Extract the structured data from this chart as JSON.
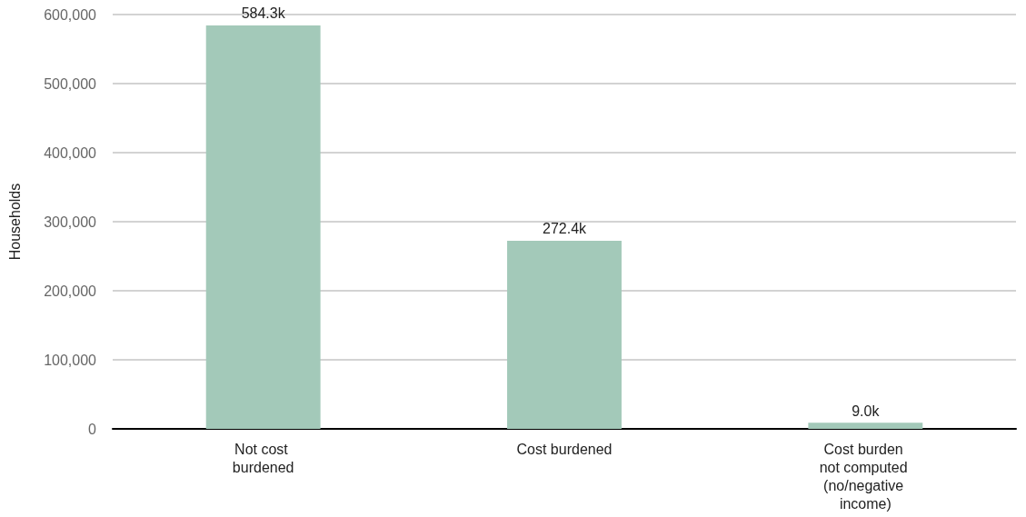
{
  "chart_data": {
    "type": "bar",
    "ylabel": "Households",
    "categories": [
      "Not cost burdened",
      "Cost burdened",
      "Cost burden not computed (no/negative income)"
    ],
    "values": [
      584300,
      272400,
      9000
    ],
    "value_labels": [
      "584.3k",
      "272.4k",
      "9.0k"
    ],
    "color": "#a3c9b9",
    "ylim": [
      0,
      600000
    ],
    "yticks": [
      {
        "value": 0,
        "label": "0"
      },
      {
        "value": 100000,
        "label": "100,000"
      },
      {
        "value": 200000,
        "label": "200,000"
      },
      {
        "value": 300000,
        "label": "300,000"
      },
      {
        "value": 400000,
        "label": "400,000"
      },
      {
        "value": 500000,
        "label": "500,000"
      },
      {
        "value": 600000,
        "label": "600,000"
      }
    ],
    "grid": "y"
  }
}
